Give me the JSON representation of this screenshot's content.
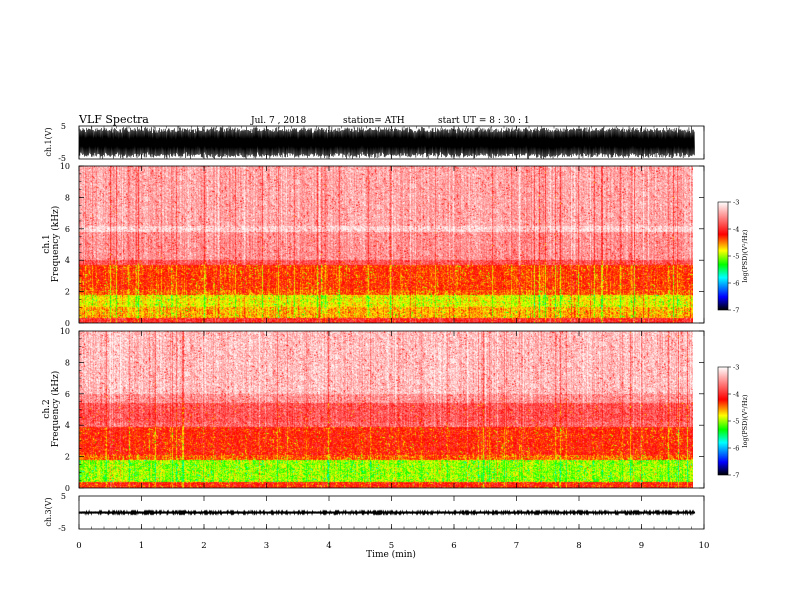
{
  "header": {
    "title": "VLF  Spectra",
    "date": "Jul.  7  , 2018",
    "station": "station= ATH",
    "start": "start  UT  =    8  : 30 : 1"
  },
  "chart_data": [
    {
      "type": "line",
      "panel": "ch1-waveform",
      "ylabel": "ch.1(V)",
      "ylim": [
        -5,
        5
      ],
      "y_ticks": [
        "5",
        "-5"
      ],
      "xlim": [
        0,
        9.85
      ],
      "x_unit": "min",
      "amplitude_range": [
        -4.5,
        4.5
      ],
      "baseline": -1.0
    },
    {
      "type": "heatmap",
      "panel": "ch1-spectrogram",
      "ylabel": "ch.1\nFrequency  (kHz)",
      "ylim": [
        0,
        10
      ],
      "y_ticks": [
        "0",
        "2",
        "4",
        "6",
        "8",
        "10"
      ],
      "xlim": [
        0,
        9.85
      ],
      "colorbar": {
        "label": "log(PSD)(V²/Hz)",
        "ticks": [
          "-3",
          "-4",
          "-5",
          "-6",
          "-7"
        ],
        "range": [
          -7,
          -3
        ]
      },
      "bands": [
        {
          "f": [
            0,
            0.3
          ],
          "level": -4.0
        },
        {
          "f": [
            0.3,
            1.0
          ],
          "level": -4.6
        },
        {
          "f": [
            1.0,
            1.8
          ],
          "level": -4.8
        },
        {
          "f": [
            1.8,
            2.1
          ],
          "level": -4.4
        },
        {
          "f": [
            2.1,
            3.7
          ],
          "level": -4.3
        },
        {
          "f": [
            3.7,
            4.0
          ],
          "level": -3.8
        },
        {
          "f": [
            4.0,
            5.8
          ],
          "level": -3.5
        },
        {
          "f": [
            5.8,
            6.2
          ],
          "level": -3.2
        },
        {
          "f": [
            6.2,
            10.0
          ],
          "level": -3.4
        }
      ]
    },
    {
      "type": "heatmap",
      "panel": "ch2-spectrogram",
      "ylabel": "ch.2\nFrequency  (kHz)",
      "ylim": [
        0,
        10
      ],
      "y_ticks": [
        "0",
        "2",
        "4",
        "6",
        "8",
        "10"
      ],
      "xlim": [
        0,
        9.85
      ],
      "colorbar": {
        "label": "log(PSD)(V²/Hz)",
        "ticks": [
          "-3",
          "-4",
          "-5",
          "-6",
          "-7"
        ],
        "range": [
          -7,
          -3
        ]
      },
      "bands": [
        {
          "f": [
            0,
            0.4
          ],
          "level": -4.2
        },
        {
          "f": [
            0.4,
            1.8
          ],
          "level": -5.0
        },
        {
          "f": [
            1.8,
            2.1
          ],
          "level": -4.4
        },
        {
          "f": [
            2.1,
            3.9
          ],
          "level": -4.2
        },
        {
          "f": [
            3.9,
            4.2
          ],
          "level": -3.7
        },
        {
          "f": [
            4.2,
            5.4
          ],
          "level": -3.8
        },
        {
          "f": [
            5.4,
            6.0
          ],
          "level": -3.5
        },
        {
          "f": [
            6.0,
            10.0
          ],
          "level": -3.3
        }
      ]
    },
    {
      "type": "line",
      "panel": "ch3-waveform",
      "ylabel": "ch.3(V)",
      "ylim": [
        -5,
        5
      ],
      "y_ticks": [
        "5",
        "-5"
      ],
      "xlim": [
        0,
        9.85
      ],
      "x_unit": "min",
      "amplitude_range": [
        -0.3,
        0.3
      ],
      "baseline": -0.3
    }
  ],
  "x_axis": {
    "label": "Time  (min)",
    "ticks": [
      "0",
      "1",
      "2",
      "3",
      "4",
      "5",
      "6",
      "7",
      "8",
      "9",
      "10"
    ],
    "range": [
      0,
      10
    ]
  },
  "colors": {
    "frame": "#000000",
    "waveform": "#000000",
    "colormap_stops": [
      "#000000",
      "#0000ff",
      "#00ffff",
      "#00ff00",
      "#ffff00",
      "#ff0000",
      "#ffffff"
    ]
  }
}
